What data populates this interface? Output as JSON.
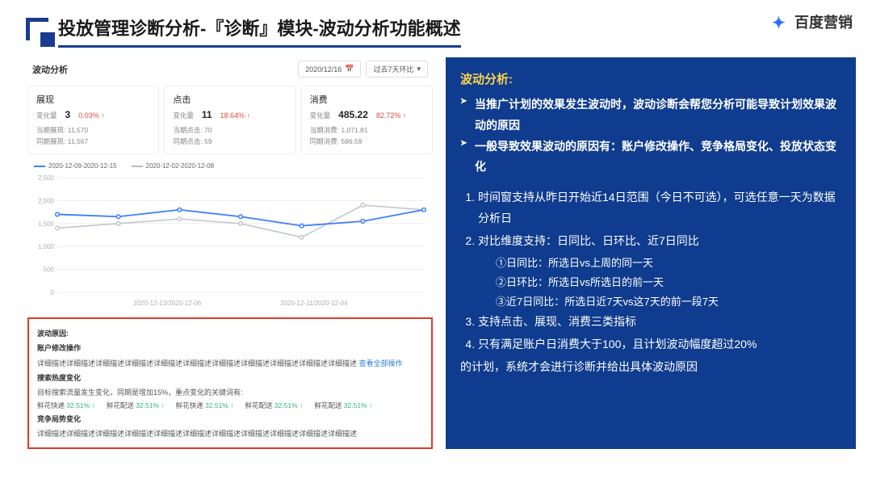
{
  "header": {
    "title": "投放管理诊断分析-『诊断』模块-波动分析功能概述",
    "logo_text": "百度营销"
  },
  "panel": {
    "title": "波动分析",
    "date": "2020/12/16",
    "compare": "过去7天环比"
  },
  "metrics": [
    {
      "title": "展现",
      "change_label": "变化量",
      "change_val": "3",
      "pct": "0.03% ↑",
      "cur_label": "当期展现:",
      "cur_val": "11,570",
      "prev_label": "同期展现:",
      "prev_val": "11,567"
    },
    {
      "title": "点击",
      "change_label": "变化量",
      "change_val": "11",
      "pct": "18.64% ↑",
      "cur_label": "当期点击:",
      "cur_val": "70",
      "prev_label": "同期点击:",
      "prev_val": "59"
    },
    {
      "title": "消费",
      "change_label": "变化量",
      "change_val": "485.22",
      "pct": "82.72% ↑",
      "cur_label": "当期消费:",
      "cur_val": "1,071.81",
      "prev_label": "同期消费:",
      "prev_val": "586.59"
    }
  ],
  "legend": {
    "a": "2020-12-09-2020-12-15",
    "b": "2020-12-02-2020-12-08"
  },
  "chart": {
    "type": "line",
    "ylim": [
      0,
      2500
    ],
    "ytick_step": 500,
    "yticks": [
      "0",
      "500",
      "1,000",
      "1,500",
      "2,000",
      "2,500"
    ],
    "xticks": [
      "2020-12-13/2020-12-06",
      "2020-12-11/2020-12-04"
    ],
    "blue_color": "#3d7fff",
    "gray_color": "#c2c7cf",
    "grid_color": "#eee",
    "label_color": "#a9afb8",
    "label_fontsize": 8,
    "series_blue": [
      1700,
      1650,
      1800,
      1650,
      1450,
      1550,
      1800
    ],
    "series_gray": [
      1400,
      1500,
      1600,
      1500,
      1200,
      1900,
      1800
    ]
  },
  "reasons": {
    "title": "波动原因:",
    "s1_title": "账户修改操作",
    "s1_desc": "详细描述详细描述详细描述详细描述详细描述详细描述详细描述详细描述详细描述详细描述详细描述",
    "s1_link": "查看全部操作",
    "s2_title": "搜索热度变化",
    "s2_desc": "目标搜索流量发生变化，同期是增加15%，重点变化的关键词有:",
    "keywords": [
      {
        "k": "鲜花快递",
        "p": "32.51% ↑"
      },
      {
        "k": "鲜花配送",
        "p": "32.51% ↑"
      },
      {
        "k": "鲜花快递",
        "p": "32.51% ↑"
      },
      {
        "k": "鲜花配送",
        "p": "32.51% ↑"
      },
      {
        "k": "鲜花配送",
        "p": "32.51% ↑"
      }
    ],
    "s3_title": "竞争局势变化",
    "s3_desc": "详细描述详细描述详细描述详细描述详细描述详细描述详细描述详细描述详细描述详细描述详细描述"
  },
  "right": {
    "head": "波动分析:",
    "bullets": [
      "当推广计划的效果发生波动时，波动诊断会帮您分析可能导致计划效果波动的原因",
      "一般导致效果波动的原因有：账户修改操作、竞争格局变化、投放状态变化"
    ],
    "num_items": [
      "时间窗支持从昨日开始近14日范围（今日不可选），可选任意一天为数据分析日",
      "对比维度支持：日同比、日环比、近7日同比",
      "支持点击、展现、消费三类指标",
      "只有满足账户日消费大于100，且计划波动幅度超过20%"
    ],
    "subs": [
      "①日同比：所选日vs上周的同一天",
      "②日环比：所选日vs所选日的前一天",
      "③近7日同比：所选日近7天vs这7天的前一段7天"
    ],
    "tail": "的计划，系统才会进行诊断并给出具体波动原因"
  }
}
